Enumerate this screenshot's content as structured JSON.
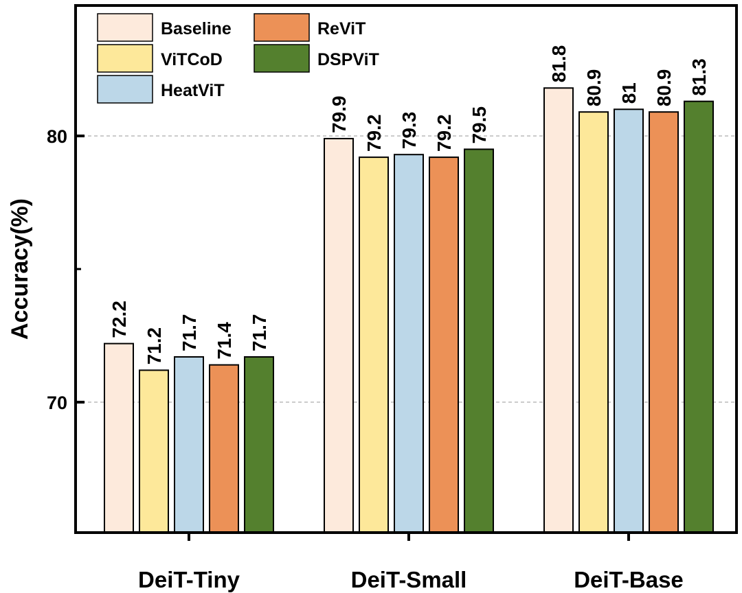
{
  "chart_data": {
    "type": "bar",
    "title": "",
    "xlabel": "",
    "ylabel": "Accuracy(%)",
    "ylim": [
      65.1,
      84.9
    ],
    "yticks": [
      70,
      80
    ],
    "grid": "dashed horizontal at major ticks",
    "legend_position": "top-left",
    "categories": [
      "DeiT-Tiny",
      "DeiT-Small",
      "DeiT-Base"
    ],
    "series": [
      {
        "name": "Baseline",
        "color": "#fdeadc",
        "values": [
          72.2,
          79.9,
          81.8
        ],
        "labels": [
          "72.2",
          "79.9",
          "81.8"
        ]
      },
      {
        "name": "ViTCoD",
        "color": "#fde89a",
        "values": [
          71.2,
          79.2,
          80.9
        ],
        "labels": [
          "71.2",
          "79.2",
          "80.9"
        ]
      },
      {
        "name": "HeatViT",
        "color": "#bcd7e8",
        "values": [
          71.7,
          79.3,
          81.0
        ],
        "labels": [
          "71.7",
          "79.3",
          "81"
        ]
      },
      {
        "name": "ReViT",
        "color": "#ec9157",
        "values": [
          71.4,
          79.2,
          80.9
        ],
        "labels": [
          "71.4",
          "79.2",
          "80.9"
        ]
      },
      {
        "name": "DSPViT",
        "color": "#54802e",
        "values": [
          71.7,
          79.5,
          81.3
        ],
        "labels": [
          "71.7",
          "79.5",
          "81.3"
        ]
      }
    ]
  }
}
